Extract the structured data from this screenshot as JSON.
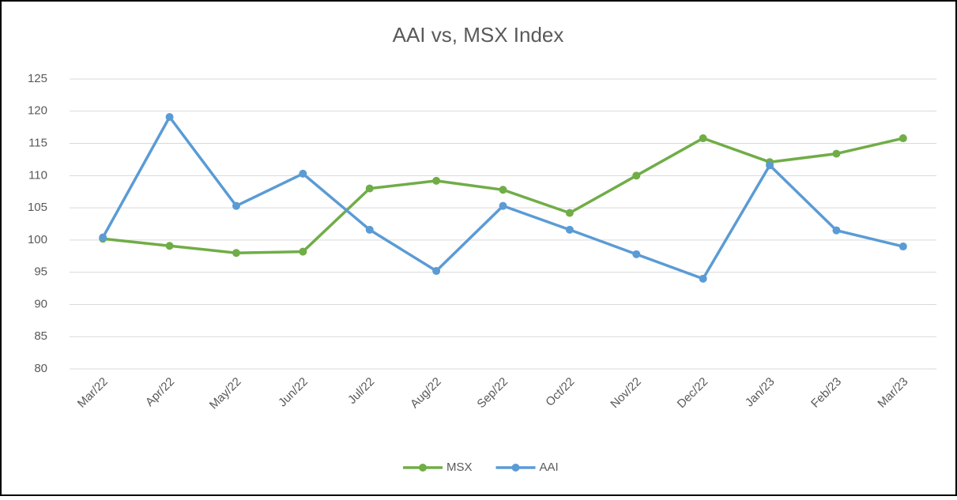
{
  "chart_data": {
    "type": "line",
    "title": "AAI vs, MSX Index",
    "categories": [
      "Mar/22",
      "Apr/22",
      "May/22",
      "Jun/22",
      "Jul/22",
      "Aug/22",
      "Sep/22",
      "Oct/22",
      "Nov/22",
      "Dec/22",
      "Jan/23",
      "Feb/23",
      "Mar/23"
    ],
    "series": [
      {
        "name": "MSX",
        "color": "#70ad47",
        "values": [
          100.2,
          99.1,
          98.0,
          98.2,
          108.0,
          109.2,
          107.8,
          104.2,
          110.0,
          115.8,
          112.1,
          113.4,
          115.8
        ]
      },
      {
        "name": "AAI",
        "color": "#5b9bd5",
        "values": [
          100.4,
          119.1,
          105.3,
          110.3,
          101.6,
          95.2,
          105.3,
          101.6,
          97.8,
          94.0,
          111.6,
          101.5,
          99.0
        ]
      }
    ],
    "ylim": [
      80,
      125
    ],
    "yticks": [
      80,
      85,
      90,
      95,
      100,
      105,
      110,
      115,
      120,
      125
    ],
    "grid": true,
    "legend": "bottom"
  }
}
